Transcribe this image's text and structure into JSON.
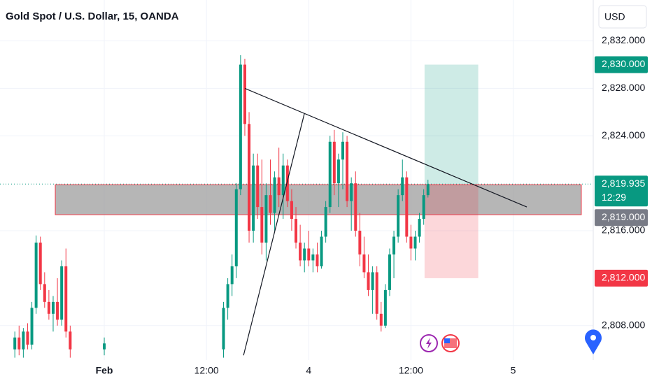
{
  "chart_data": {
    "type": "candlestick",
    "title": "Gold Spot / U.S. Dollar, 15, OANDA",
    "currency": "USD",
    "up_color": "#089981",
    "down_color": "#f23645",
    "xlim": [
      -12.24,
      57.4
    ],
    "ylim": [
      2805.1,
      2835.45
    ],
    "xticks": [
      {
        "value": 0,
        "label": "Feb"
      },
      {
        "value": 12,
        "label": "12:00"
      },
      {
        "value": 24,
        "label": "4"
      },
      {
        "value": 36,
        "label": "12:00"
      },
      {
        "value": 48,
        "label": "5"
      }
    ],
    "yticks": [
      {
        "value": 2808,
        "label": "2,808.000"
      },
      {
        "value": 2816,
        "label": "2,816.000"
      },
      {
        "value": 2824,
        "label": "2,824.000"
      },
      {
        "value": 2828,
        "label": "2,828.000"
      },
      {
        "value": 2832,
        "label": "2,832.000"
      }
    ],
    "grid": true,
    "x": [
      -10.5,
      -10,
      -9.5,
      -9,
      -8.5,
      -8,
      -7.5,
      -7,
      -6.5,
      -6,
      -5.5,
      -5,
      -4.5,
      -4,
      0,
      14,
      14.5,
      15,
      15.5,
      16,
      16.5,
      17,
      17.5,
      18,
      18.5,
      19,
      19.5,
      20,
      20.5,
      21,
      21.5,
      22,
      22.5,
      23,
      23.5,
      24,
      24.5,
      25,
      25.5,
      26,
      26.5,
      27,
      27.5,
      28,
      28.5,
      29,
      29.5,
      30,
      30.5,
      31,
      31.5,
      32,
      32.5,
      33,
      33.5,
      34,
      34.5,
      35,
      35.5,
      36,
      36.5,
      37,
      37.5,
      38
    ],
    "open": [
      2806,
      2807,
      2806,
      2807.5,
      2806.4,
      2809.5,
      2815,
      2811.5,
      2810,
      2809,
      2810,
      2808.5,
      2813,
      2807.5,
      2806,
      2806,
      2809.5,
      2811.5,
      2813,
      2819.5,
      2830,
      2825,
      2816,
      2821.5,
      2818,
      2815,
      2819,
      2817.5,
      2820.5,
      2819,
      2821.5,
      2818.5,
      2817,
      2815,
      2813.5,
      2814.5,
      2813.5,
      2814,
      2813,
      2815.5,
      2818,
      2823.5,
      2820,
      2822,
      2823.5,
      2818.5,
      2820,
      2816,
      2814,
      2812.5,
      2811,
      2812.5,
      2809,
      2808,
      2811,
      2814,
      2815.5,
      2819,
      2820.5,
      2815.5,
      2814.5,
      2815.5,
      2817,
      2819
    ],
    "high": [
      2807.5,
      2808,
      2807.8,
      2808.2,
      2810,
      2815.6,
      2815.5,
      2812.5,
      2811,
      2810.5,
      2812,
      2813.5,
      2814.5,
      2808,
      2807,
      2810,
      2812,
      2814,
      2820,
      2830.8,
      2830.5,
      2826,
      2822.5,
      2822.5,
      2822,
      2820,
      2822,
      2821,
      2823,
      2822.5,
      2822,
      2819.5,
      2818,
      2816.5,
      2815,
      2816,
      2814.5,
      2815,
      2816,
      2818.5,
      2824,
      2824.5,
      2822.5,
      2824.3,
      2824,
      2820.5,
      2821,
      2817.5,
      2815.5,
      2814,
      2813,
      2813,
      2810,
      2811.5,
      2814.5,
      2816,
      2819.5,
      2822,
      2821,
      2816.5,
      2816,
      2817.5,
      2819.5,
      2820.3
    ],
    "low": [
      2805.3,
      2805.5,
      2805.3,
      2806,
      2806,
      2809,
      2811,
      2809.5,
      2808.5,
      2807.5,
      2808,
      2808,
      2807,
      2805.3,
      2805.5,
      2805.3,
      2808.5,
      2810.5,
      2812,
      2819,
      2824,
      2815,
      2815,
      2817,
      2814,
      2813.5,
      2816.5,
      2816,
      2818,
      2817,
      2818,
      2816,
      2814.5,
      2813,
      2812.5,
      2813,
      2812.5,
      2812.5,
      2812.8,
      2815,
      2817.5,
      2819,
      2818,
      2819.5,
      2818,
      2816,
      2815.5,
      2813,
      2812,
      2810.5,
      2809,
      2808.5,
      2807.5,
      2807.8,
      2810.5,
      2812,
      2815,
      2818.5,
      2815,
      2813.5,
      2813.5,
      2815,
      2816.5,
      2818.8
    ],
    "close": [
      2807,
      2806,
      2807.5,
      2806.4,
      2809.5,
      2815,
      2811.5,
      2810,
      2809,
      2810,
      2808.5,
      2813,
      2807.5,
      2806,
      2806.5,
      2809.5,
      2811.5,
      2813,
      2819.5,
      2830,
      2825,
      2816,
      2821.5,
      2818,
      2815,
      2819,
      2817.5,
      2820.5,
      2819,
      2821.5,
      2818.5,
      2817,
      2815,
      2813.5,
      2814.5,
      2813.5,
      2814,
      2813,
      2815.5,
      2818,
      2823.5,
      2820,
      2822,
      2823.5,
      2818.5,
      2820,
      2816,
      2814,
      2812.5,
      2811,
      2812.5,
      2809,
      2808,
      2811,
      2814,
      2815.5,
      2819,
      2820.5,
      2815.5,
      2814.5,
      2815.5,
      2817,
      2819,
      2819.935
    ],
    "trend_lines": [
      {
        "x": [
          16.5,
          49.6
        ],
        "y": [
          2828,
          2818
        ]
      },
      {
        "x": [
          16.35,
          23.5
        ],
        "y": [
          2805.5,
          2825.9
        ]
      }
    ],
    "zone": {
      "x": [
        -5.75,
        56.0
      ],
      "y": [
        2817.35,
        2819.88
      ]
    },
    "position": {
      "x": [
        37.6,
        43.9
      ],
      "entry": 2819.935,
      "target": 2830,
      "stop": 2812
    },
    "last_price": 2819.935,
    "price_labels": [
      {
        "value": 2830,
        "label": "2,830.000",
        "color": "#089981"
      },
      {
        "value": 2819.935,
        "label": "2,819.935",
        "sub": "12:29",
        "color": "#089981"
      },
      {
        "value": 2819,
        "label": "2,819.000",
        "color": "#787b86"
      },
      {
        "value": 2812,
        "label": "2,812.000",
        "color": "#f23645"
      }
    ]
  }
}
